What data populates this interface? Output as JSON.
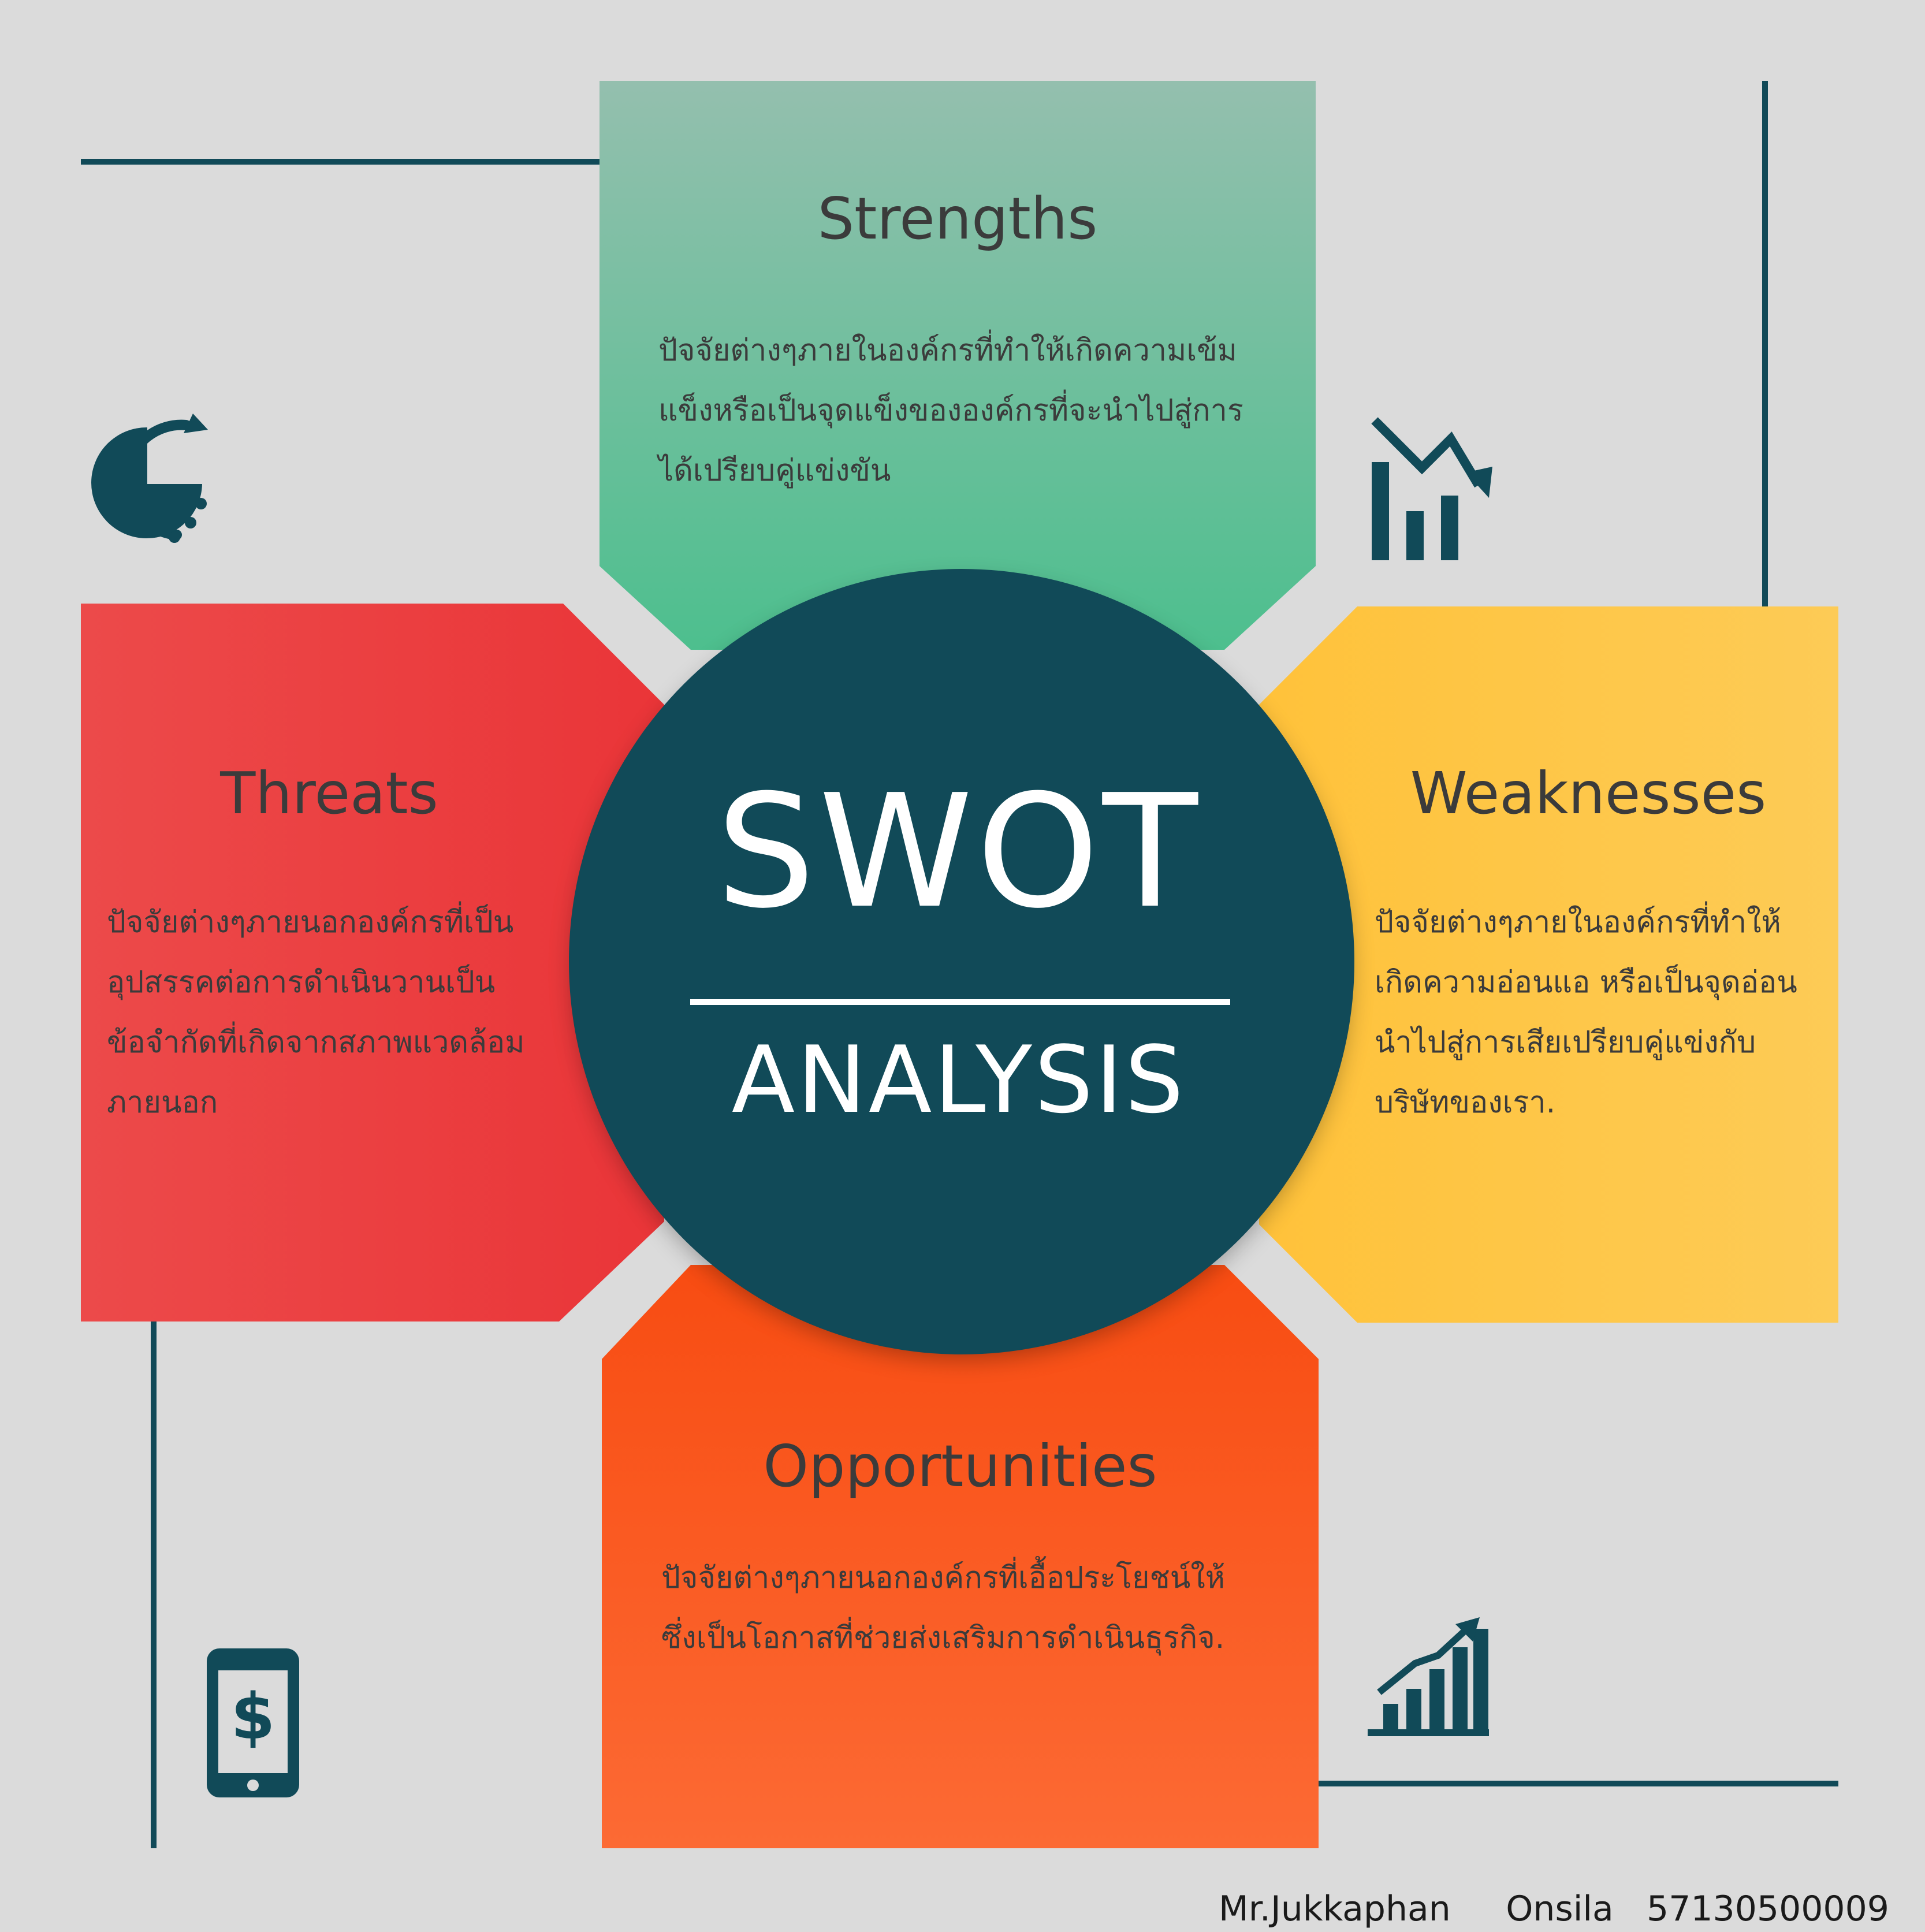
{
  "diagram": {
    "center": {
      "title": "SWOT",
      "subtitle": "ANALYSIS"
    },
    "strengths": {
      "title": "Strengths",
      "body": [
        "ปัจจัยต่างๆภายในองค์กรที่ทำให้เกิดความเข้ม",
        "แข็งหรือเป็นจุดแข็งขององค์กรที่จะนำไปสู่การ",
        "ได้เปรียบคู่แข่งขัน"
      ],
      "color_top": "#94bfae",
      "color_bottom": "#4dbf8e"
    },
    "weaknesses": {
      "title": "Weaknesses",
      "body": [
        "ปัจจัยต่างๆภายในองค์กรที่ทำให้",
        "เกิดความอ่อนแอ  หรือเป็นจุดอ่อน",
        "นำไปสู่การเสียเปรียบคู่แข่งกับ",
        "บริษัทของเรา."
      ],
      "color_left": "#ffc23a",
      "color_right": "#fdcb56"
    },
    "opportunities": {
      "title": "Opportunities",
      "body": [
        "ปัจจัยต่างๆภายนอกองค์กรที่เอื้อประโยชน์ให้",
        "ซึ่งเป็นโอกาสที่ช่วยส่งเสริมการดำเนินธุรกิจ."
      ],
      "color_top": "#f84c12",
      "color_bottom": "#fc6a34"
    },
    "threats": {
      "title": "Threats",
      "body": [
        "ปัจจัยต่างๆภายนอกองค์กรที่เป็น",
        "อุปสรรคต่อการดำเนินวานเป็น",
        "ข้อจำกัดที่เกิดจากสภาพแวดล้อม",
        "ภายนอก"
      ],
      "color_left": "#ec4a4a",
      "color_right": "#ea3538"
    },
    "credit": "Mr.Jukkaphan     Onsila   57130500009",
    "icons": [
      "pie-clock-icon",
      "chart-down-icon",
      "mobile-dollar-icon",
      "chart-up-icon"
    ],
    "colors": {
      "background": "#dbdbdb",
      "navy": "#114a58",
      "accent_dark": "#0e3540"
    }
  }
}
